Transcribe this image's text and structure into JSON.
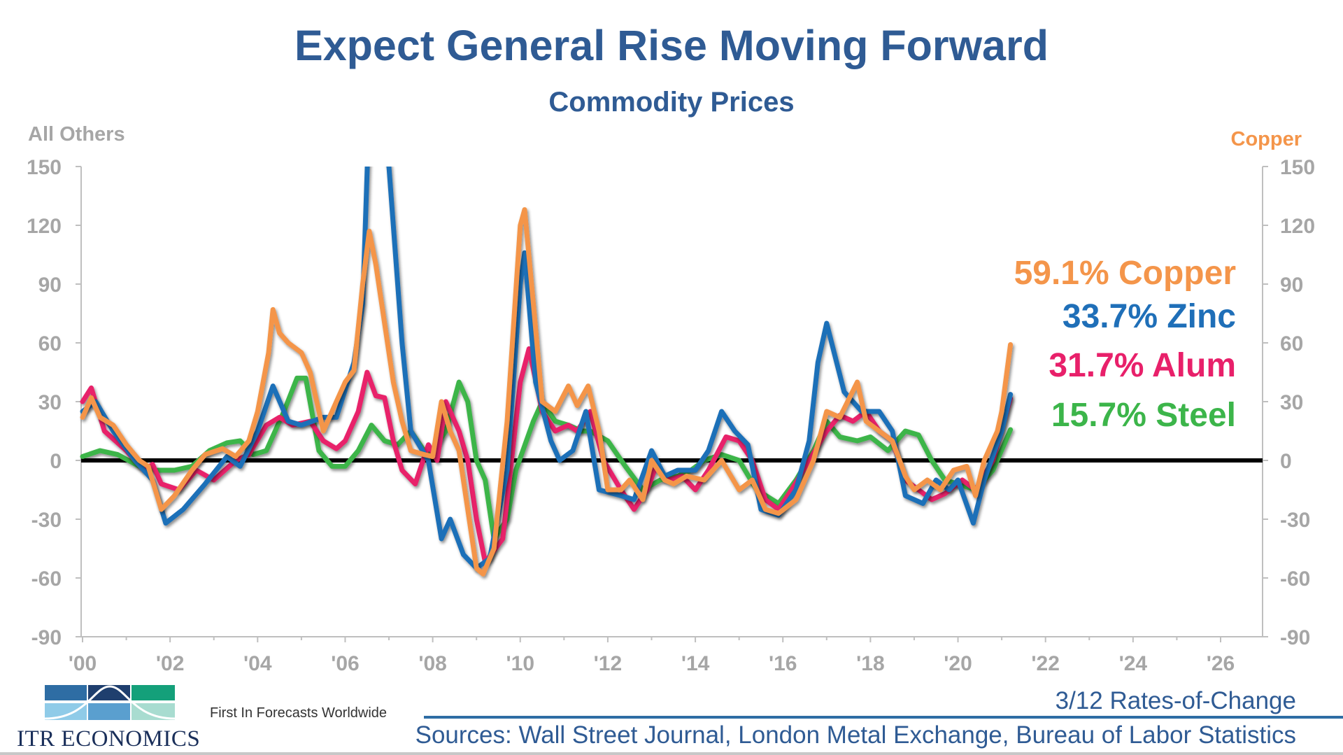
{
  "header": {
    "title": "Expect General Rise Moving Forward",
    "subtitle": "Commodity Prices"
  },
  "footer": {
    "rates_label": "3/12 Rates-of-Change",
    "sources": "Sources: Wall Street Journal, London Metal Exchange, Bureau of Labor Statistics",
    "tagline": "First In Forecasts Worldwide",
    "brand": "ITR ECONOMICS",
    "line_color": "#2e6da4"
  },
  "chart_data": {
    "type": "line",
    "title": "Expect General Rise Moving Forward",
    "subtitle": "Commodity Prices",
    "ylabel_left": "All Others",
    "ylabel_right": "Copper",
    "xlim": [
      2000,
      2026
    ],
    "ylim": [
      -90,
      150
    ],
    "x_ticks": [
      "'00",
      "'02",
      "'04",
      "'06",
      "'08",
      "'10",
      "'12",
      "'14",
      "'16",
      "'18",
      "'20",
      "'22",
      "'24",
      "'26"
    ],
    "y_ticks": [
      150,
      120,
      90,
      60,
      30,
      0,
      -30,
      -60,
      -90
    ],
    "grid": false,
    "reference_line": 0,
    "annotations": [
      {
        "text": "59.1% Copper",
        "color": "#f4954a"
      },
      {
        "text": "33.7% Zinc",
        "color": "#1f6fb8"
      },
      {
        "text": "31.7% Alum",
        "color": "#e8206a"
      },
      {
        "text": "15.7% Steel",
        "color": "#3cb54a"
      }
    ],
    "series": [
      {
        "name": "Steel",
        "color": "#3cb54a",
        "points": [
          [
            2000,
            2
          ],
          [
            2000.4,
            5
          ],
          [
            2000.8,
            3
          ],
          [
            2001.3,
            -3
          ],
          [
            2001.7,
            -5
          ],
          [
            2002.1,
            -5
          ],
          [
            2002.5,
            -3
          ],
          [
            2002.9,
            5
          ],
          [
            2003.3,
            9
          ],
          [
            2003.6,
            10
          ],
          [
            2003.9,
            3
          ],
          [
            2004.2,
            5
          ],
          [
            2004.6,
            25
          ],
          [
            2004.9,
            42
          ],
          [
            2005.1,
            42
          ],
          [
            2005.4,
            5
          ],
          [
            2005.7,
            -3
          ],
          [
            2006.0,
            -3
          ],
          [
            2006.3,
            5
          ],
          [
            2006.6,
            18
          ],
          [
            2006.9,
            10
          ],
          [
            2007.2,
            8
          ],
          [
            2007.5,
            15
          ],
          [
            2007.8,
            5
          ],
          [
            2008.0,
            5
          ],
          [
            2008.3,
            15
          ],
          [
            2008.6,
            40
          ],
          [
            2008.8,
            30
          ],
          [
            2009.0,
            0
          ],
          [
            2009.2,
            -10
          ],
          [
            2009.4,
            -40
          ],
          [
            2009.7,
            -30
          ],
          [
            2009.9,
            -5
          ],
          [
            2010.3,
            20
          ],
          [
            2010.5,
            30
          ],
          [
            2010.8,
            20
          ],
          [
            2011.1,
            18
          ],
          [
            2011.4,
            15
          ],
          [
            2011.6,
            15
          ],
          [
            2012.0,
            10
          ],
          [
            2012.4,
            -3
          ],
          [
            2012.8,
            -15
          ],
          [
            2013.2,
            -10
          ],
          [
            2013.6,
            -8
          ],
          [
            2013.9,
            -5
          ],
          [
            2014.2,
            0
          ],
          [
            2014.6,
            3
          ],
          [
            2015.0,
            0
          ],
          [
            2015.4,
            -15
          ],
          [
            2015.9,
            -22
          ],
          [
            2016.3,
            -10
          ],
          [
            2016.7,
            5
          ],
          [
            2017.0,
            20
          ],
          [
            2017.3,
            12
          ],
          [
            2017.7,
            10
          ],
          [
            2018.0,
            12
          ],
          [
            2018.4,
            5
          ],
          [
            2018.8,
            15
          ],
          [
            2019.1,
            13
          ],
          [
            2019.4,
            0
          ],
          [
            2019.7,
            -10
          ],
          [
            2020.0,
            -12
          ],
          [
            2020.4,
            -15
          ],
          [
            2020.8,
            -5
          ],
          [
            2021.2,
            15.7
          ]
        ]
      },
      {
        "name": "Alum",
        "color": "#e8206a",
        "points": [
          [
            2000,
            30
          ],
          [
            2000.2,
            37
          ],
          [
            2000.5,
            15
          ],
          [
            2001,
            5
          ],
          [
            2001.4,
            -5
          ],
          [
            2001.6,
            -2
          ],
          [
            2001.8,
            -12
          ],
          [
            2002.2,
            -15
          ],
          [
            2002.6,
            -5
          ],
          [
            2003.0,
            -10
          ],
          [
            2003.5,
            0
          ],
          [
            2003.8,
            3
          ],
          [
            2004.2,
            18
          ],
          [
            2004.5,
            22
          ],
          [
            2004.8,
            18
          ],
          [
            2005.2,
            20
          ],
          [
            2005.5,
            10
          ],
          [
            2005.8,
            6
          ],
          [
            2006.0,
            10
          ],
          [
            2006.3,
            25
          ],
          [
            2006.5,
            45
          ],
          [
            2006.7,
            33
          ],
          [
            2006.9,
            32
          ],
          [
            2007.1,
            10
          ],
          [
            2007.3,
            -5
          ],
          [
            2007.6,
            -12
          ],
          [
            2007.9,
            8
          ],
          [
            2008.1,
            0
          ],
          [
            2008.3,
            30
          ],
          [
            2008.6,
            15
          ],
          [
            2008.8,
            0
          ],
          [
            2009.0,
            -30
          ],
          [
            2009.2,
            -52
          ],
          [
            2009.6,
            -40
          ],
          [
            2009.8,
            0
          ],
          [
            2010.0,
            40
          ],
          [
            2010.2,
            57
          ],
          [
            2010.5,
            25
          ],
          [
            2010.8,
            15
          ],
          [
            2011.1,
            18
          ],
          [
            2011.3,
            15
          ],
          [
            2011.6,
            25
          ],
          [
            2011.9,
            0
          ],
          [
            2012.3,
            -15
          ],
          [
            2012.6,
            -25
          ],
          [
            2012.9,
            -15
          ],
          [
            2013.1,
            -3
          ],
          [
            2013.4,
            -10
          ],
          [
            2013.7,
            -8
          ],
          [
            2014.0,
            -15
          ],
          [
            2014.3,
            -5
          ],
          [
            2014.7,
            12
          ],
          [
            2015.0,
            10
          ],
          [
            2015.3,
            0
          ],
          [
            2015.6,
            -20
          ],
          [
            2015.9,
            -25
          ],
          [
            2016.2,
            -15
          ],
          [
            2016.6,
            0
          ],
          [
            2017.0,
            15
          ],
          [
            2017.3,
            23
          ],
          [
            2017.6,
            20
          ],
          [
            2017.9,
            25
          ],
          [
            2018.2,
            15
          ],
          [
            2018.5,
            10
          ],
          [
            2018.8,
            -10
          ],
          [
            2019.1,
            -15
          ],
          [
            2019.4,
            -20
          ],
          [
            2019.7,
            -17
          ],
          [
            2020.1,
            -10
          ],
          [
            2020.4,
            -15
          ],
          [
            2020.8,
            0
          ],
          [
            2021.2,
            31.7
          ]
        ]
      },
      {
        "name": "Zinc",
        "color": "#1f6fb8",
        "points": [
          [
            2000,
            25
          ],
          [
            2000.3,
            30
          ],
          [
            2000.7,
            15
          ],
          [
            2001.2,
            0
          ],
          [
            2001.6,
            -10
          ],
          [
            2001.9,
            -32
          ],
          [
            2002.3,
            -25
          ],
          [
            2002.8,
            -12
          ],
          [
            2003.3,
            2
          ],
          [
            2003.6,
            -3
          ],
          [
            2004,
            15
          ],
          [
            2004.35,
            38
          ],
          [
            2004.7,
            20
          ],
          [
            2005,
            18
          ],
          [
            2005.5,
            22
          ],
          [
            2005.8,
            22
          ],
          [
            2006.2,
            50
          ],
          [
            2006.4,
            80
          ],
          [
            2006.55,
            180
          ],
          [
            2007.0,
            150
          ],
          [
            2007.3,
            60
          ],
          [
            2007.5,
            15
          ],
          [
            2007.9,
            0
          ],
          [
            2008.2,
            -40
          ],
          [
            2008.4,
            -30
          ],
          [
            2008.7,
            -48
          ],
          [
            2009.0,
            -55
          ],
          [
            2009.3,
            -50
          ],
          [
            2009.7,
            -5
          ],
          [
            2010.0,
            90
          ],
          [
            2010.1,
            106
          ],
          [
            2010.35,
            40
          ],
          [
            2010.7,
            10
          ],
          [
            2010.9,
            0
          ],
          [
            2011.2,
            5
          ],
          [
            2011.5,
            25
          ],
          [
            2011.8,
            -15
          ],
          [
            2012.3,
            -18
          ],
          [
            2012.6,
            -20
          ],
          [
            2013.0,
            5
          ],
          [
            2013.3,
            -8
          ],
          [
            2013.6,
            -5
          ],
          [
            2014.0,
            -5
          ],
          [
            2014.3,
            5
          ],
          [
            2014.6,
            25
          ],
          [
            2014.9,
            15
          ],
          [
            2015.2,
            8
          ],
          [
            2015.5,
            -25
          ],
          [
            2015.9,
            -28
          ],
          [
            2016.3,
            -15
          ],
          [
            2016.6,
            10
          ],
          [
            2016.8,
            50
          ],
          [
            2017.0,
            70
          ],
          [
            2017.4,
            35
          ],
          [
            2017.8,
            25
          ],
          [
            2018.2,
            25
          ],
          [
            2018.5,
            15
          ],
          [
            2018.8,
            -18
          ],
          [
            2019.2,
            -22
          ],
          [
            2019.5,
            -10
          ],
          [
            2019.8,
            -15
          ],
          [
            2020.0,
            -10
          ],
          [
            2020.35,
            -32
          ],
          [
            2020.6,
            -10
          ],
          [
            2021.0,
            15
          ],
          [
            2021.2,
            33.7
          ]
        ]
      },
      {
        "name": "Copper",
        "color": "#f4954a",
        "points": [
          [
            2000,
            22
          ],
          [
            2000.2,
            32
          ],
          [
            2000.4,
            22
          ],
          [
            2000.7,
            18
          ],
          [
            2001,
            8
          ],
          [
            2001.3,
            0
          ],
          [
            2001.5,
            -3
          ],
          [
            2001.8,
            -25
          ],
          [
            2002.1,
            -18
          ],
          [
            2002.5,
            -5
          ],
          [
            2002.8,
            3
          ],
          [
            2003.2,
            6
          ],
          [
            2003.5,
            2
          ],
          [
            2003.8,
            10
          ],
          [
            2004,
            25
          ],
          [
            2004.25,
            55
          ],
          [
            2004.35,
            77
          ],
          [
            2004.5,
            65
          ],
          [
            2004.7,
            60
          ],
          [
            2005,
            55
          ],
          [
            2005.2,
            45
          ],
          [
            2005.5,
            15
          ],
          [
            2005.8,
            30
          ],
          [
            2006,
            40
          ],
          [
            2006.2,
            46
          ],
          [
            2006.4,
            90
          ],
          [
            2006.55,
            117
          ],
          [
            2006.7,
            100
          ],
          [
            2006.9,
            70
          ],
          [
            2007.1,
            40
          ],
          [
            2007.3,
            20
          ],
          [
            2007.5,
            5
          ],
          [
            2007.8,
            3
          ],
          [
            2008,
            2
          ],
          [
            2008.2,
            30
          ],
          [
            2008.4,
            15
          ],
          [
            2008.6,
            5
          ],
          [
            2008.8,
            -25
          ],
          [
            2009.0,
            -55
          ],
          [
            2009.15,
            -58
          ],
          [
            2009.4,
            -45
          ],
          [
            2009.7,
            20
          ],
          [
            2010.0,
            120
          ],
          [
            2010.1,
            128
          ],
          [
            2010.3,
            80
          ],
          [
            2010.5,
            30
          ],
          [
            2010.8,
            25
          ],
          [
            2011.1,
            38
          ],
          [
            2011.3,
            28
          ],
          [
            2011.55,
            38
          ],
          [
            2011.8,
            15
          ],
          [
            2012.0,
            -15
          ],
          [
            2012.3,
            -15
          ],
          [
            2012.5,
            -10
          ],
          [
            2012.8,
            -20
          ],
          [
            2013.0,
            0
          ],
          [
            2013.3,
            -10
          ],
          [
            2013.5,
            -12
          ],
          [
            2013.8,
            -8
          ],
          [
            2014.2,
            -10
          ],
          [
            2014.6,
            0
          ],
          [
            2015.0,
            -15
          ],
          [
            2015.3,
            -10
          ],
          [
            2015.6,
            -25
          ],
          [
            2015.9,
            -27
          ],
          [
            2016.3,
            -20
          ],
          [
            2016.7,
            0
          ],
          [
            2017.0,
            25
          ],
          [
            2017.3,
            22
          ],
          [
            2017.7,
            40
          ],
          [
            2017.9,
            20
          ],
          [
            2018.2,
            15
          ],
          [
            2018.5,
            10
          ],
          [
            2018.8,
            -8
          ],
          [
            2019.0,
            -15
          ],
          [
            2019.3,
            -10
          ],
          [
            2019.6,
            -15
          ],
          [
            2019.9,
            -5
          ],
          [
            2020.2,
            -3
          ],
          [
            2020.4,
            -18
          ],
          [
            2020.6,
            0
          ],
          [
            2020.9,
            15
          ],
          [
            2021.0,
            25
          ],
          [
            2021.2,
            59.1
          ]
        ]
      }
    ]
  }
}
